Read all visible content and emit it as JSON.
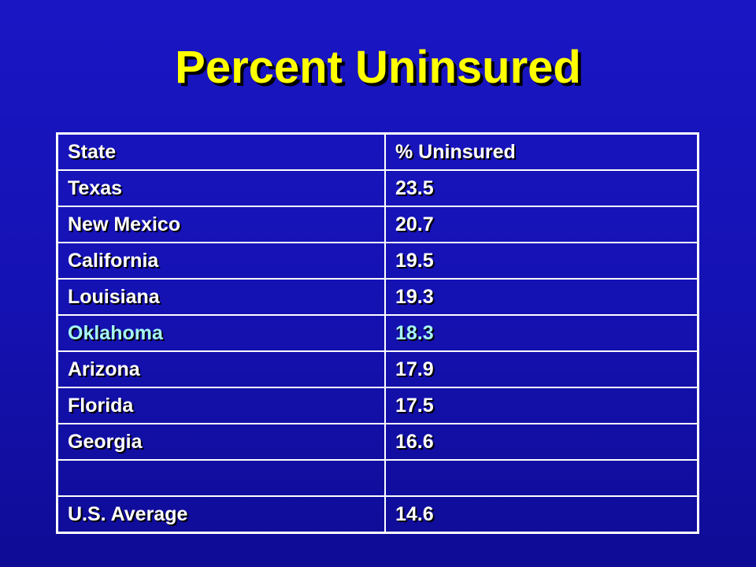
{
  "slide": {
    "title": "Percent Uninsured"
  },
  "colors": {
    "background": "#1512b4",
    "title": "#ffff00",
    "text": "#ffffff",
    "highlight_text": "#a6f5f5",
    "border": "#ffffff"
  },
  "table": {
    "headers": {
      "state": "State",
      "value": "% Uninsured"
    },
    "rows": [
      {
        "state": "Texas",
        "value": "23.5"
      },
      {
        "state": "New Mexico",
        "value": "20.7"
      },
      {
        "state": "California",
        "value": "19.5"
      },
      {
        "state": "Louisiana",
        "value": "19.3"
      },
      {
        "state": "Oklahoma",
        "value": "18.3",
        "highlighted": true
      },
      {
        "state": "Arizona",
        "value": "17.9"
      },
      {
        "state": "Florida",
        "value": "17.5"
      },
      {
        "state": "Georgia",
        "value": "16.6"
      },
      {
        "state": "",
        "value": ""
      },
      {
        "state": "U.S. Average",
        "value": "14.6"
      }
    ]
  }
}
